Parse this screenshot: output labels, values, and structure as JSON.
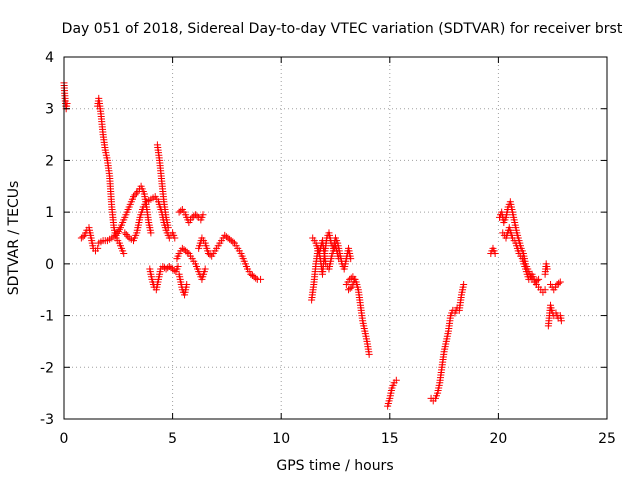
{
  "chart_data": {
    "type": "scatter",
    "title": "Day 051 of 2018, Sidereal Day-to-day VTEC variation (SDTVAR) for receiver brst",
    "xlabel": "GPS time / hours",
    "ylabel": "SDTVAR / TECUs",
    "xlim": [
      0,
      25
    ],
    "ylim": [
      -3,
      4
    ],
    "xticks": [
      "0",
      "5",
      "10",
      "15",
      "20",
      "25"
    ],
    "yticks": [
      "4",
      "3",
      "2",
      "1",
      "0",
      "-1",
      "-2",
      "-3"
    ],
    "grid": true,
    "marker": "+",
    "color": "#ff0000",
    "series": [
      {
        "name": "SDTVAR",
        "segments": [
          [
            [
              0.0,
              3.5
            ],
            [
              0.03,
              3.3
            ],
            [
              0.07,
              3.1
            ],
            [
              0.1,
              3.0
            ],
            [
              0.14,
              3.1
            ]
          ],
          [
            [
              0.8,
              0.5
            ],
            [
              0.95,
              0.55
            ],
            [
              1.05,
              0.65
            ],
            [
              1.15,
              0.7
            ],
            [
              1.25,
              0.5
            ],
            [
              1.35,
              0.3
            ],
            [
              1.45,
              0.25
            ],
            [
              1.55,
              0.3
            ]
          ],
          [
            [
              1.55,
              3.05
            ],
            [
              1.6,
              3.2
            ],
            [
              1.7,
              2.9
            ],
            [
              1.8,
              2.5
            ],
            [
              1.9,
              2.2
            ],
            [
              2.0,
              2.0
            ],
            [
              2.1,
              1.7
            ],
            [
              2.2,
              1.1
            ],
            [
              2.3,
              0.7
            ],
            [
              2.4,
              0.5
            ],
            [
              2.55,
              0.4
            ],
            [
              2.65,
              0.3
            ],
            [
              2.75,
              0.2
            ]
          ],
          [
            [
              1.6,
              0.4
            ],
            [
              1.8,
              0.45
            ],
            [
              2.0,
              0.45
            ],
            [
              2.2,
              0.5
            ],
            [
              2.4,
              0.55
            ],
            [
              2.6,
              0.7
            ],
            [
              2.8,
              0.9
            ],
            [
              3.0,
              1.1
            ],
            [
              3.2,
              1.3
            ],
            [
              3.4,
              1.4
            ],
            [
              3.55,
              1.5
            ],
            [
              3.7,
              1.35
            ],
            [
              3.8,
              1.1
            ],
            [
              3.9,
              0.8
            ],
            [
              4.0,
              0.6
            ]
          ],
          [
            [
              2.8,
              0.6
            ],
            [
              3.0,
              0.5
            ],
            [
              3.2,
              0.45
            ],
            [
              3.35,
              0.6
            ],
            [
              3.5,
              0.9
            ],
            [
              3.65,
              1.1
            ],
            [
              3.8,
              1.2
            ],
            [
              4.0,
              1.25
            ],
            [
              4.2,
              1.3
            ],
            [
              4.35,
              1.2
            ],
            [
              4.5,
              1.0
            ],
            [
              4.6,
              0.8
            ],
            [
              4.7,
              0.65
            ],
            [
              4.85,
              0.5
            ],
            [
              5.0,
              0.6
            ],
            [
              5.1,
              0.5
            ]
          ],
          [
            [
              3.95,
              -0.1
            ],
            [
              4.05,
              -0.3
            ],
            [
              4.15,
              -0.45
            ],
            [
              4.25,
              -0.5
            ],
            [
              4.35,
              -0.3
            ],
            [
              4.45,
              -0.1
            ],
            [
              4.55,
              -0.05
            ],
            [
              4.7,
              -0.1
            ],
            [
              4.85,
              -0.05
            ],
            [
              5.0,
              -0.1
            ],
            [
              5.15,
              -0.15
            ],
            [
              5.25,
              -0.05
            ]
          ],
          [
            [
              4.3,
              2.3
            ],
            [
              4.4,
              2.0
            ],
            [
              4.5,
              1.6
            ],
            [
              4.6,
              1.2
            ],
            [
              4.7,
              0.9
            ],
            [
              4.8,
              0.7
            ]
          ],
          [
            [
              5.2,
              0.1
            ],
            [
              5.3,
              0.2
            ],
            [
              5.45,
              0.3
            ],
            [
              5.6,
              0.25
            ],
            [
              5.75,
              0.2
            ],
            [
              5.9,
              0.1
            ],
            [
              6.05,
              0.0
            ],
            [
              6.2,
              -0.15
            ],
            [
              6.35,
              -0.3
            ],
            [
              6.5,
              -0.1
            ]
          ],
          [
            [
              5.3,
              -0.2
            ],
            [
              5.45,
              -0.5
            ],
            [
              5.55,
              -0.6
            ],
            [
              5.65,
              -0.4
            ]
          ],
          [
            [
              5.3,
              1.0
            ],
            [
              5.45,
              1.05
            ],
            [
              5.6,
              0.95
            ],
            [
              5.75,
              0.8
            ],
            [
              5.9,
              0.9
            ],
            [
              6.05,
              0.95
            ],
            [
              6.2,
              0.9
            ],
            [
              6.3,
              0.85
            ],
            [
              6.4,
              0.95
            ]
          ],
          [
            [
              6.2,
              0.3
            ],
            [
              6.35,
              0.5
            ],
            [
              6.5,
              0.4
            ],
            [
              6.65,
              0.2
            ],
            [
              6.8,
              0.15
            ],
            [
              6.95,
              0.25
            ],
            [
              7.1,
              0.35
            ],
            [
              7.25,
              0.45
            ],
            [
              7.4,
              0.55
            ],
            [
              7.55,
              0.5
            ],
            [
              7.7,
              0.45
            ],
            [
              7.85,
              0.4
            ],
            [
              8.0,
              0.3
            ],
            [
              8.15,
              0.2
            ],
            [
              8.3,
              0.05
            ],
            [
              8.45,
              -0.1
            ],
            [
              8.6,
              -0.2
            ],
            [
              8.75,
              -0.25
            ],
            [
              8.9,
              -0.3
            ],
            [
              9.05,
              -0.3
            ]
          ],
          [
            [
              11.4,
              -0.7
            ],
            [
              11.5,
              -0.4
            ],
            [
              11.6,
              0.0
            ],
            [
              11.7,
              0.3
            ],
            [
              11.8,
              0.1
            ],
            [
              11.9,
              -0.2
            ],
            [
              12.0,
              0.2
            ],
            [
              12.1,
              0.5
            ],
            [
              12.2,
              0.6
            ],
            [
              12.3,
              0.4
            ],
            [
              12.4,
              0.3
            ],
            [
              12.5,
              0.5
            ],
            [
              12.6,
              0.4
            ],
            [
              12.7,
              0.2
            ],
            [
              12.8,
              0.0
            ],
            [
              12.9,
              -0.1
            ],
            [
              13.0,
              0.1
            ],
            [
              13.1,
              0.3
            ],
            [
              13.2,
              0.1
            ]
          ],
          [
            [
              11.45,
              0.5
            ],
            [
              11.6,
              0.4
            ],
            [
              11.75,
              0.2
            ],
            [
              11.9,
              0.45
            ],
            [
              12.05,
              0.0
            ],
            [
              12.2,
              -0.1
            ],
            [
              12.35,
              0.2
            ],
            [
              12.5,
              0.35
            ],
            [
              12.65,
              0.1
            ]
          ],
          [
            [
              13.0,
              -0.4
            ],
            [
              13.15,
              -0.3
            ],
            [
              13.3,
              -0.25
            ],
            [
              13.45,
              -0.35
            ],
            [
              13.55,
              -0.5
            ],
            [
              13.65,
              -0.8
            ],
            [
              13.75,
              -1.1
            ],
            [
              13.85,
              -1.3
            ],
            [
              13.95,
              -1.5
            ],
            [
              14.05,
              -1.75
            ]
          ],
          [
            [
              13.1,
              -0.5
            ],
            [
              13.25,
              -0.45
            ],
            [
              13.4,
              -0.3
            ]
          ],
          [
            [
              14.9,
              -2.75
            ],
            [
              15.0,
              -2.6
            ],
            [
              15.1,
              -2.4
            ],
            [
              15.2,
              -2.3
            ],
            [
              15.3,
              -2.25
            ]
          ],
          [
            [
              16.9,
              -2.6
            ],
            [
              17.0,
              -2.65
            ],
            [
              17.1,
              -2.6
            ],
            [
              17.2,
              -2.5
            ],
            [
              17.3,
              -2.3
            ],
            [
              17.4,
              -2.0
            ],
            [
              17.5,
              -1.7
            ],
            [
              17.6,
              -1.5
            ],
            [
              17.7,
              -1.3
            ],
            [
              17.8,
              -1.0
            ],
            [
              17.9,
              -0.9
            ],
            [
              18.0,
              -0.95
            ],
            [
              18.1,
              -0.85
            ],
            [
              18.2,
              -0.9
            ],
            [
              18.3,
              -0.6
            ],
            [
              18.4,
              -0.4
            ]
          ],
          [
            [
              19.65,
              0.2
            ],
            [
              19.75,
              0.3
            ],
            [
              19.85,
              0.2
            ]
          ],
          [
            [
              20.05,
              0.9
            ],
            [
              20.15,
              1.0
            ],
            [
              20.25,
              0.8
            ],
            [
              20.35,
              0.9
            ],
            [
              20.45,
              1.1
            ],
            [
              20.55,
              1.2
            ],
            [
              20.65,
              1.0
            ],
            [
              20.75,
              0.8
            ],
            [
              20.85,
              0.6
            ],
            [
              20.95,
              0.45
            ],
            [
              21.05,
              0.3
            ],
            [
              21.15,
              0.2
            ],
            [
              21.25,
              0.0
            ],
            [
              21.35,
              -0.1
            ],
            [
              21.45,
              -0.2
            ],
            [
              21.55,
              -0.3
            ],
            [
              21.65,
              -0.35
            ],
            [
              21.75,
              -0.4
            ],
            [
              21.85,
              -0.45
            ],
            [
              21.95,
              -0.5
            ],
            [
              22.05,
              -0.55
            ],
            [
              22.15,
              -0.5
            ]
          ],
          [
            [
              20.2,
              0.6
            ],
            [
              20.35,
              0.5
            ],
            [
              20.5,
              0.7
            ],
            [
              20.65,
              0.5
            ],
            [
              20.8,
              0.4
            ],
            [
              20.95,
              0.2
            ],
            [
              21.1,
              0.1
            ],
            [
              21.25,
              -0.1
            ],
            [
              21.4,
              -0.3
            ],
            [
              21.55,
              -0.2
            ],
            [
              21.7,
              -0.35
            ],
            [
              21.85,
              -0.3
            ]
          ],
          [
            [
              22.15,
              -0.2
            ],
            [
              22.2,
              0.0
            ],
            [
              22.25,
              -0.1
            ]
          ],
          [
            [
              22.3,
              -1.2
            ],
            [
              22.35,
              -1.0
            ],
            [
              22.4,
              -0.8
            ],
            [
              22.45,
              -0.9
            ],
            [
              22.55,
              -1.0
            ],
            [
              22.65,
              -0.95
            ],
            [
              22.75,
              -1.05
            ],
            [
              22.85,
              -1.0
            ],
            [
              22.9,
              -1.1
            ]
          ],
          [
            [
              22.4,
              -0.4
            ],
            [
              22.55,
              -0.5
            ],
            [
              22.7,
              -0.4
            ],
            [
              22.85,
              -0.35
            ]
          ]
        ]
      }
    ]
  }
}
